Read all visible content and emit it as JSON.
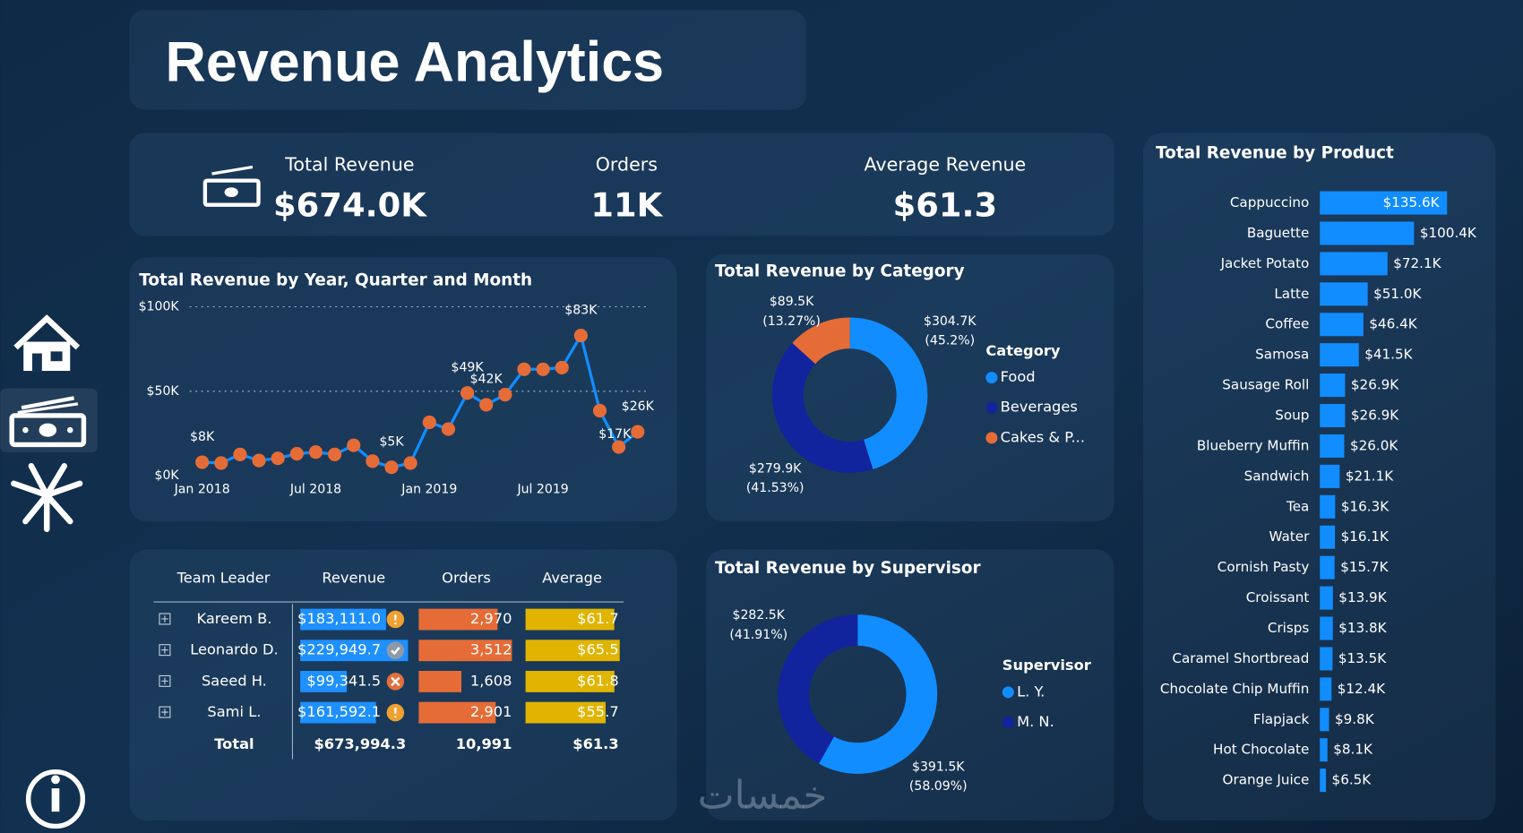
{
  "title": "Revenue Analytics",
  "kpis": [
    {
      "label": "Total Revenue",
      "value": "$674.0K"
    },
    {
      "label": "Orders",
      "value": "11K"
    },
    {
      "label": "Average Revenue",
      "value": "$61.3"
    }
  ],
  "chart_data": [
    {
      "type": "line",
      "title": "Total Revenue by Year, Quarter and Month",
      "x": [
        "2018-01",
        "2018-02",
        "2018-03",
        "2018-04",
        "2018-05",
        "2018-06",
        "2018-07",
        "2018-08",
        "2018-09",
        "2018-10",
        "2018-11",
        "2018-12",
        "2019-01",
        "2019-02",
        "2019-03",
        "2019-04",
        "2019-05",
        "2019-06",
        "2019-07",
        "2019-08",
        "2019-09",
        "2019-10",
        "2019-11",
        "2019-12"
      ],
      "values": [
        8,
        7.5,
        12.6,
        9,
        10.3,
        13,
        14,
        12.6,
        18,
        8.6,
        5,
        7.5,
        31.6,
        27.6,
        49,
        42,
        48,
        63,
        63,
        64,
        83,
        38.5,
        17,
        26
      ],
      "value_labels": [
        "$8K",
        null,
        null,
        null,
        null,
        null,
        null,
        null,
        null,
        null,
        "$5K",
        null,
        null,
        null,
        "$49K",
        "$42K",
        null,
        null,
        null,
        null,
        "$83K",
        null,
        "$17K",
        "$26K"
      ],
      "color": "#118DFF",
      "marker_color": "#E66C37",
      "ylim": [
        0,
        100
      ],
      "yticks": [
        {
          "value": 0,
          "label": "$0K"
        },
        {
          "value": 50,
          "label": "$50K"
        },
        {
          "value": 100,
          "label": "$100K"
        }
      ],
      "xticks": [
        {
          "value": "2018-01",
          "label": "Jan 2018"
        },
        {
          "value": "2018-07",
          "label": "Jul 2018"
        },
        {
          "value": "2019-01",
          "label": "Jan 2019"
        },
        {
          "value": "2019-07",
          "label": "Jul 2019"
        }
      ],
      "grid": true
    },
    {
      "type": "donut",
      "title": "Total Revenue by Category",
      "legend_title": "Category",
      "categories": [
        "Food",
        "Beverages",
        "Cakes & P..."
      ],
      "values": [
        304.7,
        279.9,
        89.5
      ],
      "value_labels": [
        "$304.7K",
        "$279.9K",
        "$89.5K"
      ],
      "percent_labels": [
        "(45.2%)",
        "(41.53%)",
        "(13.27%)"
      ],
      "colors": [
        "#118DFF",
        "#12239E",
        "#E66C37"
      ]
    },
    {
      "type": "donut",
      "title": "Total Revenue by Supervisor",
      "legend_title": "Supervisor",
      "categories": [
        "L. Y.",
        "M. N."
      ],
      "values": [
        391.5,
        282.5
      ],
      "value_labels": [
        "$391.5K",
        "$282.5K"
      ],
      "percent_labels": [
        "(58.09%)",
        "(41.91%)"
      ],
      "colors": [
        "#118DFF",
        "#12239E"
      ]
    },
    {
      "type": "bar",
      "orientation": "horizontal",
      "title": "Total Revenue by Product",
      "categories": [
        "Cappuccino",
        "Baguette",
        "Jacket Potato",
        "Latte",
        "Coffee",
        "Samosa",
        "Sausage Roll",
        "Soup",
        "Blueberry Muffin",
        "Sandwich",
        "Tea",
        "Water",
        "Cornish Pasty",
        "Croissant",
        "Crisps",
        "Caramel Shortbread",
        "Chocolate Chip Muffin",
        "Flapjack",
        "Hot Chocolate",
        "Orange Juice"
      ],
      "values": [
        135.6,
        100.4,
        72.1,
        51,
        46.4,
        41.5,
        26.9,
        26.9,
        26,
        21.1,
        16.3,
        16.1,
        15.7,
        13.9,
        13.8,
        13.5,
        12.4,
        9.8,
        8.1,
        6.5
      ],
      "value_labels": [
        "$135.6K",
        "$100.4K",
        "$72.1K",
        "$51.0K",
        "$46.4K",
        "$41.5K",
        "$26.9K",
        "$26.9K",
        "$26.0K",
        "$21.1K",
        "$16.3K",
        "$16.1K",
        "$15.7K",
        "$13.9K",
        "$13.8K",
        "$13.5K",
        "$12.4K",
        "$9.8K",
        "$8.1K",
        "$6.5K"
      ],
      "color": "#118DFF"
    }
  ],
  "table": {
    "columns": [
      "Team Leader",
      "Revenue",
      "Orders",
      "Average"
    ],
    "rows": [
      {
        "leader": "Kareem B.",
        "revenue": {
          "value": 183111.0,
          "label": "$183,111.0"
        },
        "orders": {
          "value": 2970,
          "label": "2,970"
        },
        "average": {
          "value": 61.7,
          "label": "$61.7"
        }
      },
      {
        "leader": "Leonardo D.",
        "revenue": {
          "value": 229949.7,
          "label": "$229,949.7"
        },
        "orders": {
          "value": 3512,
          "label": "3,512"
        },
        "average": {
          "value": 65.5,
          "label": "$65.5"
        }
      },
      {
        "leader": "Saeed H.",
        "revenue": {
          "value": 99341.5,
          "label": "$99,341.5"
        },
        "orders": {
          "value": 1608,
          "label": "1,608"
        },
        "average": {
          "value": 61.8,
          "label": "$61.8"
        }
      },
      {
        "leader": "Sami L.",
        "revenue": {
          "value": 161592.1,
          "label": "$161,592.1"
        },
        "orders": {
          "value": 2901,
          "label": "2,901"
        },
        "average": {
          "value": 55.7,
          "label": "$55.7"
        }
      }
    ],
    "total": {
      "leader": "Total",
      "revenue": "$673,994.3",
      "orders": "10,991",
      "average": "$61.3"
    }
  },
  "watermark": "خمسات"
}
